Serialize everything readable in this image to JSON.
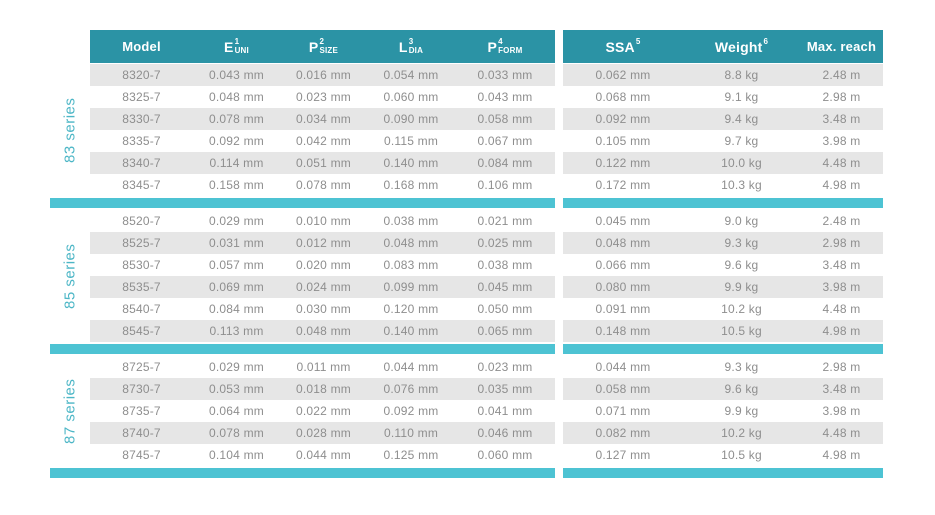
{
  "table": {
    "colors": {
      "header_background": "#2b93a5",
      "divider_bar": "#4dc3d3",
      "series_label_text": "#4cb6c6",
      "row_stripe": "#e6e6e6",
      "cell_text": "#8e8e8e",
      "header_text": "#ffffff"
    },
    "columns": [
      {
        "id": "model",
        "label": "Model"
      },
      {
        "id": "e-uni",
        "base": "E",
        "sub": "UNI",
        "sup": "1"
      },
      {
        "id": "p-size",
        "base": "P",
        "sub": "SIZE",
        "sup": "2"
      },
      {
        "id": "l-dia",
        "base": "L",
        "sub": "DIA",
        "sup": "3"
      },
      {
        "id": "p-form",
        "base": "P",
        "sub": "FORM",
        "sup": "4"
      },
      {
        "id": "ssa",
        "base": "SSA",
        "sub": "",
        "sup": "5"
      },
      {
        "id": "weight",
        "base": "Weight",
        "sub": "",
        "sup": "6"
      },
      {
        "id": "max-reach",
        "label": "Max. reach"
      }
    ],
    "sections": [
      {
        "series": "83 series",
        "striped_rows": [
          0,
          2,
          4
        ],
        "rows": [
          [
            "8320-7",
            "0.043 mm",
            "0.016 mm",
            "0.054 mm",
            "0.033 mm",
            "0.062 mm",
            "8.8 kg",
            "2.48 m"
          ],
          [
            "8325-7",
            "0.048 mm",
            "0.023 mm",
            "0.060 mm",
            "0.043 mm",
            "0.068 mm",
            "9.1 kg",
            "2.98 m"
          ],
          [
            "8330-7",
            "0.078 mm",
            "0.034 mm",
            "0.090 mm",
            "0.058 mm",
            "0.092 mm",
            "9.4 kg",
            "3.48 m"
          ],
          [
            "8335-7",
            "0.092 mm",
            "0.042 mm",
            "0.115 mm",
            "0.067 mm",
            "0.105 mm",
            "9.7 kg",
            "3.98 m"
          ],
          [
            "8340-7",
            "0.114 mm",
            "0.051 mm",
            "0.140 mm",
            "0.084 mm",
            "0.122 mm",
            "10.0 kg",
            "4.48 m"
          ],
          [
            "8345-7",
            "0.158 mm",
            "0.078 mm",
            "0.168 mm",
            "0.106 mm",
            "0.172 mm",
            "10.3 kg",
            "4.98 m"
          ]
        ]
      },
      {
        "series": "85 series",
        "striped_rows": [
          1,
          3,
          5
        ],
        "rows": [
          [
            "8520-7",
            "0.029 mm",
            "0.010 mm",
            "0.038 mm",
            "0.021 mm",
            "0.045 mm",
            "9.0 kg",
            "2.48 m"
          ],
          [
            "8525-7",
            "0.031 mm",
            "0.012 mm",
            "0.048 mm",
            "0.025 mm",
            "0.048 mm",
            "9.3 kg",
            "2.98 m"
          ],
          [
            "8530-7",
            "0.057 mm",
            "0.020 mm",
            "0.083 mm",
            "0.038 mm",
            "0.066 mm",
            "9.6 kg",
            "3.48 m"
          ],
          [
            "8535-7",
            "0.069 mm",
            "0.024 mm",
            "0.099 mm",
            "0.045 mm",
            "0.080 mm",
            "9.9 kg",
            "3.98 m"
          ],
          [
            "8540-7",
            "0.084 mm",
            "0.030 mm",
            "0.120 mm",
            "0.050 mm",
            "0.091 mm",
            "10.2 kg",
            "4.48 m"
          ],
          [
            "8545-7",
            "0.113 mm",
            "0.048 mm",
            "0.140 mm",
            "0.065 mm",
            "0.148 mm",
            "10.5 kg",
            "4.98 m"
          ]
        ]
      },
      {
        "series": "87 series",
        "striped_rows": [
          1,
          3
        ],
        "rows": [
          [
            "8725-7",
            "0.029 mm",
            "0.011 mm",
            "0.044 mm",
            "0.023 mm",
            "0.044 mm",
            "9.3 kg",
            "2.98 m"
          ],
          [
            "8730-7",
            "0.053 mm",
            "0.018 mm",
            "0.076 mm",
            "0.035 mm",
            "0.058 mm",
            "9.6 kg",
            "3.48 m"
          ],
          [
            "8735-7",
            "0.064 mm",
            "0.022 mm",
            "0.092 mm",
            "0.041 mm",
            "0.071 mm",
            "9.9 kg",
            "3.98 m"
          ],
          [
            "8740-7",
            "0.078 mm",
            "0.028 mm",
            "0.110 mm",
            "0.046 mm",
            "0.082 mm",
            "10.2 kg",
            "4.48 m"
          ],
          [
            "8745-7",
            "0.104 mm",
            "0.044 mm",
            "0.125 mm",
            "0.060 mm",
            "0.127 mm",
            "10.5 kg",
            "4.98 m"
          ]
        ]
      }
    ]
  }
}
